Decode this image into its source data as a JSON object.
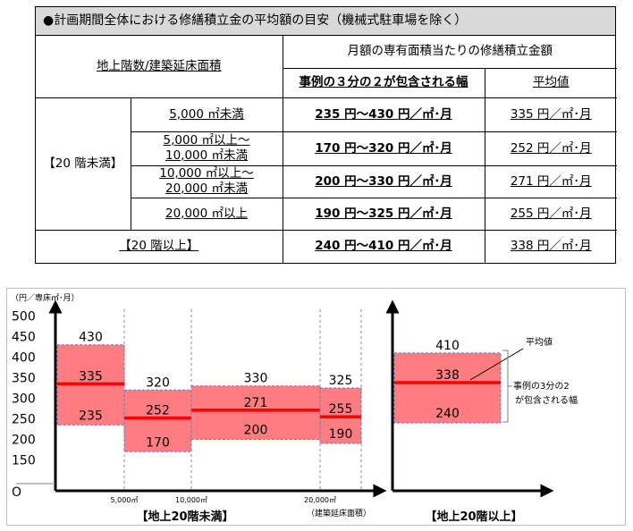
{
  "table": {
    "title": "●計画期間全体における修繕積立金の平均額の目安（機械式駐車場を除く）",
    "header_floor_area": "地上階数/建築延床面積",
    "header_monthly": "月額の専有面積当たりの修繕積立金額",
    "header_range": "事例の３分の２が包含される幅",
    "header_avg": "平均値",
    "group_under20": "【20 階未満】",
    "group_over20": "【20 階以上】",
    "rows": [
      {
        "area_line1": "5,000 ㎡未満",
        "area_line2": "",
        "range": "235 円〜430 円／㎡･月",
        "avg": "335 円／㎡･月"
      },
      {
        "area_line1": "5,000 ㎡以上〜",
        "area_line2": "10,000 ㎡未満",
        "range": "170 円〜320 円／㎡･月",
        "avg": "252 円／㎡･月"
      },
      {
        "area_line1": "10,000 ㎡以上〜",
        "area_line2": "20,000 ㎡未満",
        "range": "200 円〜330 円／㎡･月",
        "avg": "271 円／㎡･月"
      },
      {
        "area_line1": "20,000 ㎡以上",
        "area_line2": "",
        "range": "190 円〜325 円／㎡･月",
        "avg": "255 円／㎡･月"
      }
    ],
    "over20_row": {
      "range": "240 円〜410 円／㎡･月",
      "avg": "338 円／㎡･月"
    }
  },
  "chart_data": {
    "type": "bar",
    "ylabel": "（円／専床㎡･月）",
    "ylim": [
      0,
      500
    ],
    "y_ticks": [
      "500",
      "450",
      "400",
      "350",
      "300",
      "250",
      "200",
      "150",
      "O"
    ],
    "x_ticks": [
      "5,000㎡",
      "10,000㎡",
      "20,000㎡"
    ],
    "x_axis_label": "（建築延床面積）",
    "group_under20_label": "【地上20階未満】",
    "group_over20_label": "【地上20階以上】",
    "annotation_avg": "平均値",
    "annotation_range_line1": "事例の3分の2",
    "annotation_range_line2": "が包含される幅",
    "bars": [
      {
        "category": "5,000㎡未満",
        "low": 235,
        "high": 430,
        "avg": 335,
        "low_label": "235",
        "high_label": "430",
        "avg_label": "335"
      },
      {
        "category": "5,000〜10,000㎡",
        "low": 170,
        "high": 320,
        "avg": 252,
        "low_label": "170",
        "high_label": "320",
        "avg_label": "252"
      },
      {
        "category": "10,000〜20,000㎡",
        "low": 200,
        "high": 330,
        "avg": 271,
        "low_label": "200",
        "high_label": "330",
        "avg_label": "271"
      },
      {
        "category": "20,000㎡以上",
        "low": 190,
        "high": 325,
        "avg": 255,
        "low_label": "190",
        "high_label": "325",
        "avg_label": "255"
      },
      {
        "category": "地上20階以上",
        "low": 240,
        "high": 410,
        "avg": 338,
        "low_label": "240",
        "high_label": "410",
        "avg_label": "338"
      }
    ],
    "colors": {
      "fill": "#ff7c80",
      "avg_line": "#ff0000",
      "border": "#5b7fc0",
      "axis": "#000000"
    }
  }
}
